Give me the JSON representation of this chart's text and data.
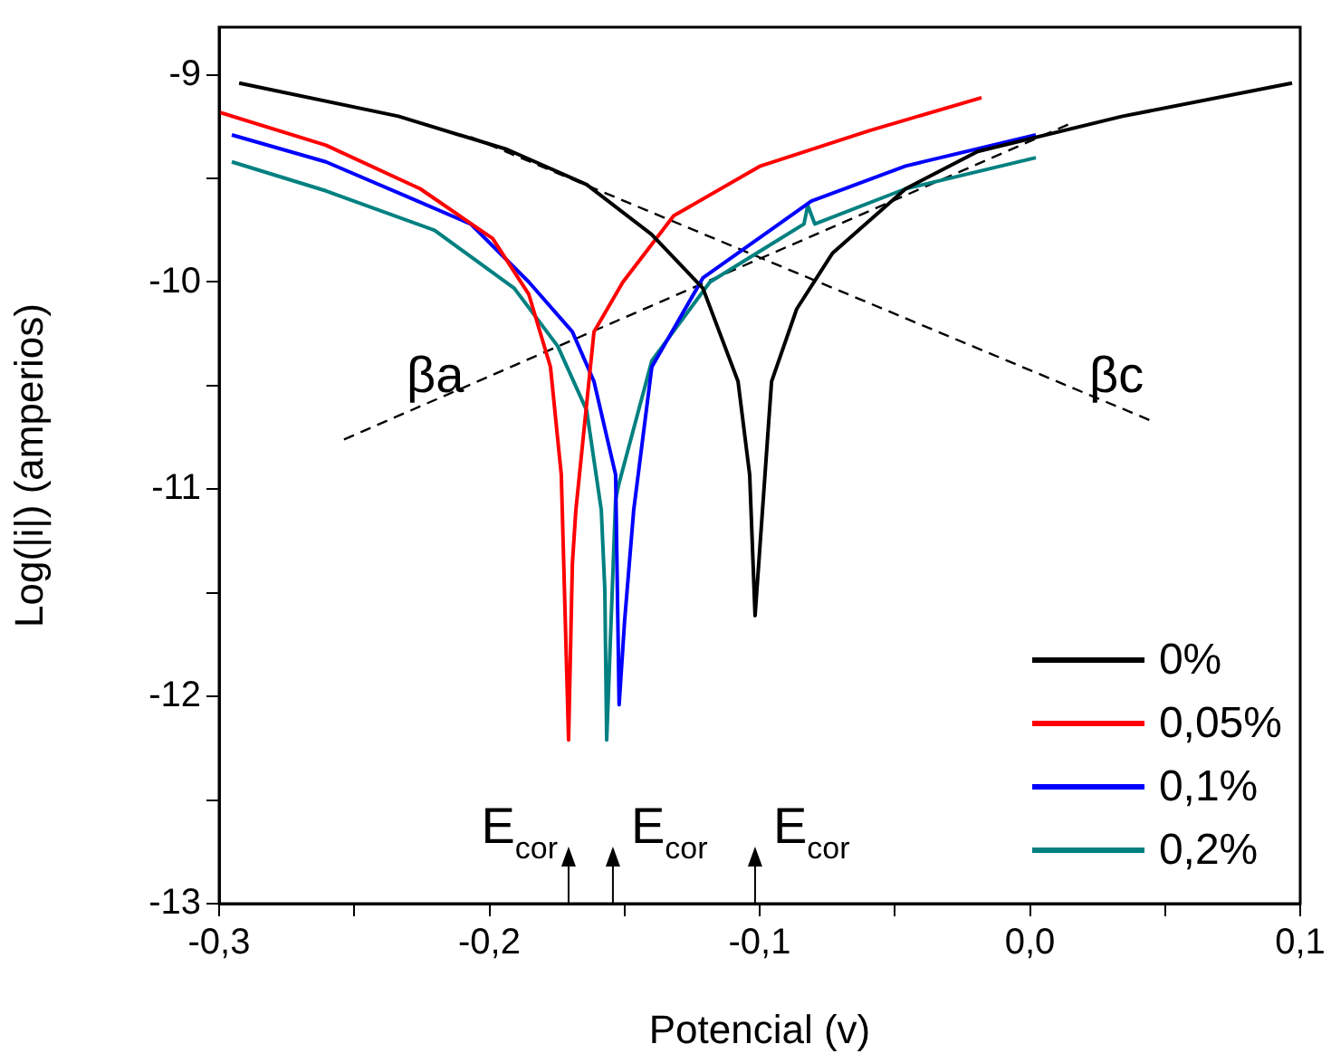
{
  "chart_data": {
    "type": "line",
    "xlabel": "Potencial (v)",
    "ylabel": "Log(|i|) (amperios)",
    "xlim": [
      -0.3,
      0.1
    ],
    "ylim": [
      -13,
      -8.77
    ],
    "xticks": [
      {
        "value": -0.3,
        "label": "-0,3"
      },
      {
        "value": -0.25,
        "label": null
      },
      {
        "value": -0.2,
        "label": "-0,2"
      },
      {
        "value": -0.15,
        "label": null
      },
      {
        "value": -0.1,
        "label": "-0,1"
      },
      {
        "value": -0.05,
        "label": null
      },
      {
        "value": 0,
        "label": "0,0"
      },
      {
        "value": 0.05,
        "label": null
      },
      {
        "value": 0.1,
        "label": "0,1"
      }
    ],
    "yticks": [
      -13,
      {
        "value": -12.5,
        "label": null
      },
      -12,
      {
        "value": -11.5,
        "label": null
      },
      -11,
      {
        "value": -10.5,
        "label": null
      },
      -10,
      {
        "value": -9.5,
        "label": null
      },
      -9
    ],
    "grid": false,
    "legend": "bottom right",
    "marker": "none",
    "line_style": "solid",
    "series": [
      {
        "name": "0%",
        "color": "#000000",
        "x": [
          -0.2926,
          -0.2337,
          -0.1935,
          -0.164,
          -0.14,
          -0.121,
          -0.108,
          -0.1037,
          -0.1017,
          -0.0956,
          -0.0863,
          -0.073,
          -0.046,
          -0.0193,
          0.0343,
          0.097
        ],
        "values": [
          -9.04,
          -9.2,
          -9.36,
          -9.53,
          -9.77,
          -10.03,
          -10.48,
          -10.93,
          -11.61,
          -10.48,
          -10.13,
          -9.86,
          -9.55,
          -9.37,
          -9.2,
          -9.04
        ]
      },
      {
        "name": "0,05%",
        "color": "#ff0000",
        "x": [
          -0.3,
          -0.2605,
          -0.2256,
          -0.1988,
          -0.1854,
          -0.1774,
          -0.1734,
          -0.1707,
          -0.1693,
          -0.168,
          -0.1613,
          -0.1506,
          -0.1318,
          -0.0997,
          -0.0595,
          -0.0179
        ],
        "values": [
          -9.18,
          -9.34,
          -9.55,
          -9.79,
          -10.06,
          -10.41,
          -10.93,
          -12.21,
          -11.36,
          -11.1,
          -10.24,
          -10.0,
          -9.68,
          -9.44,
          -9.27,
          -9.11
        ]
      },
      {
        "name": "0,1%",
        "color": "#0000ff",
        "x": [
          -0.2953,
          -0.2605,
          -0.2283,
          -0.2069,
          -0.1854,
          -0.1693,
          -0.1613,
          -0.1533,
          -0.152,
          -0.15,
          -0.1466,
          -0.1399,
          -0.121,
          -0.0809,
          -0.046,
          0.0022
        ],
        "values": [
          -9.29,
          -9.42,
          -9.6,
          -9.72,
          -10.0,
          -10.24,
          -10.48,
          -10.93,
          -12.04,
          -11.64,
          -11.1,
          -10.41,
          -9.98,
          -9.61,
          -9.44,
          -9.29
        ]
      },
      {
        "name": "0,2%",
        "color": "#008080",
        "x": [
          -0.2953,
          -0.2605,
          -0.2203,
          -0.1908,
          -0.1747,
          -0.164,
          -0.1586,
          -0.1573,
          -0.1566,
          -0.1533,
          -0.152,
          -0.1399,
          -0.1184,
          -0.0836,
          -0.0822,
          -0.0796,
          -0.046,
          0.0022
        ],
        "values": [
          -9.42,
          -9.56,
          -9.75,
          -10.03,
          -10.31,
          -10.62,
          -11.1,
          -11.48,
          -12.21,
          -11.05,
          -10.97,
          -10.38,
          -10.0,
          -9.72,
          -9.63,
          -9.72,
          -9.55,
          -9.4
        ]
      },
      {
        "type": "line",
        "line_style": "dashed",
        "color": "#000000",
        "x": [
          -0.2538,
          0.0142
        ],
        "values": [
          -10.76,
          -9.24
        ]
      },
      {
        "type": "line",
        "line_style": "dashed",
        "color": "#000000",
        "x": [
          -0.2069,
          0.045
        ],
        "values": [
          -9.3,
          -10.67
        ]
      }
    ],
    "annotations": [
      "βa",
      "βc",
      "E$_{cor}$",
      "E$_{cor}$",
      "E$_{cor}$"
    ]
  }
}
